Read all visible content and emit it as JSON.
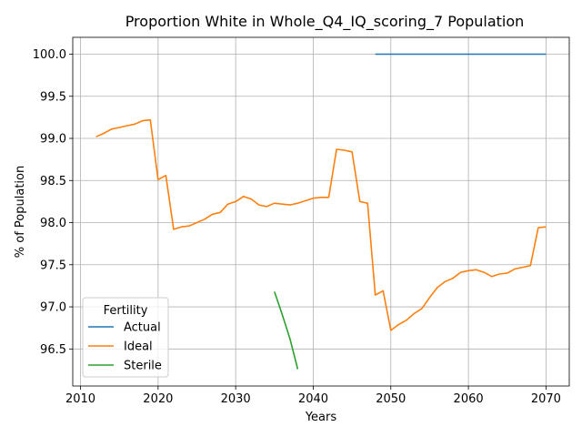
{
  "chart_data": {
    "type": "line",
    "title": "Proportion White in Whole_Q4_IQ_scoring_7 Population",
    "xlabel": "Years",
    "ylabel": "% of Population",
    "xlim": [
      2009,
      2073
    ],
    "ylim": [
      96.06,
      100.2
    ],
    "xticks": [
      2010,
      2020,
      2030,
      2040,
      2050,
      2060,
      2070
    ],
    "yticks": [
      96.5,
      97.0,
      97.5,
      98.0,
      98.5,
      99.0,
      99.5,
      100.0
    ],
    "ytick_labels": [
      "96.5",
      "97.0",
      "97.5",
      "98.0",
      "98.5",
      "99.0",
      "99.5",
      "100.0"
    ],
    "grid": true,
    "legend": {
      "title": "Fertility",
      "placement": "lower-left"
    },
    "series": [
      {
        "name": "Actual",
        "color": "#1f77b4",
        "x": [
          2048,
          2050,
          2055,
          2060,
          2065,
          2070
        ],
        "y": [
          100.0,
          100.0,
          100.0,
          100.0,
          100.0,
          100.0
        ]
      },
      {
        "name": "Ideal",
        "color": "#ff7f0e",
        "x": [
          2012,
          2013,
          2014,
          2015,
          2016,
          2017,
          2018,
          2019,
          2020,
          2021,
          2022,
          2023,
          2024,
          2025,
          2026,
          2027,
          2028,
          2029,
          2030,
          2031,
          2032,
          2033,
          2034,
          2035,
          2036,
          2037,
          2038,
          2039,
          2040,
          2041,
          2042,
          2043,
          2044,
          2045,
          2046,
          2047,
          2048,
          2049,
          2050,
          2051,
          2052,
          2053,
          2054,
          2055,
          2056,
          2057,
          2058,
          2059,
          2060,
          2061,
          2062,
          2063,
          2064,
          2065,
          2066,
          2067,
          2068,
          2069,
          2070
        ],
        "y": [
          99.02,
          99.06,
          99.11,
          99.13,
          99.15,
          99.17,
          99.21,
          99.22,
          98.51,
          98.56,
          97.92,
          97.95,
          97.96,
          98.0,
          98.04,
          98.1,
          98.12,
          98.22,
          98.25,
          98.31,
          98.28,
          98.21,
          98.19,
          98.23,
          98.22,
          98.21,
          98.23,
          98.26,
          98.29,
          98.3,
          98.3,
          98.87,
          98.86,
          98.84,
          98.25,
          98.23,
          97.14,
          97.19,
          96.72,
          96.79,
          96.84,
          96.92,
          96.98,
          97.11,
          97.23,
          97.3,
          97.34,
          97.41,
          97.43,
          97.44,
          97.41,
          97.36,
          97.39,
          97.4,
          97.45,
          97.47,
          97.49,
          97.94,
          97.95
        ]
      },
      {
        "name": "Sterile",
        "color": "#2ca02c",
        "x": [
          2035,
          2036,
          2037,
          2038
        ],
        "y": [
          97.18,
          96.91,
          96.62,
          96.26
        ]
      }
    ]
  }
}
